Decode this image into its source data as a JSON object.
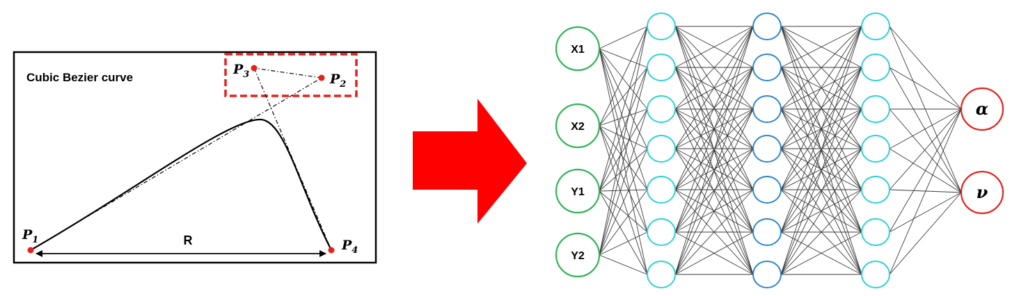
{
  "bezier_panel": {
    "title": "Cubic Bezier curve",
    "points": [
      {
        "base": "P",
        "sub": "1"
      },
      {
        "base": "P",
        "sub": "2"
      },
      {
        "base": "P",
        "sub": "3"
      },
      {
        "base": "P",
        "sub": "4"
      }
    ],
    "distance_label": "R",
    "colors": {
      "point": "#e8201a",
      "highlight_box": "#e8201a",
      "curve": "#000000"
    }
  },
  "arrow": {
    "color": "#ff0000"
  },
  "network": {
    "input_nodes": [
      "X1",
      "X2",
      "Y1",
      "Y2"
    ],
    "hidden_layers": [
      {
        "count": 7,
        "color": "#29d2d8"
      },
      {
        "count": 7,
        "color": "#2a86cf"
      },
      {
        "count": 7,
        "color": "#29d2d8"
      }
    ],
    "output_nodes": [
      "α",
      "ν"
    ],
    "colors": {
      "input": "#2fb457",
      "output": "#e8201a",
      "edge": "#3a3a3a"
    }
  }
}
